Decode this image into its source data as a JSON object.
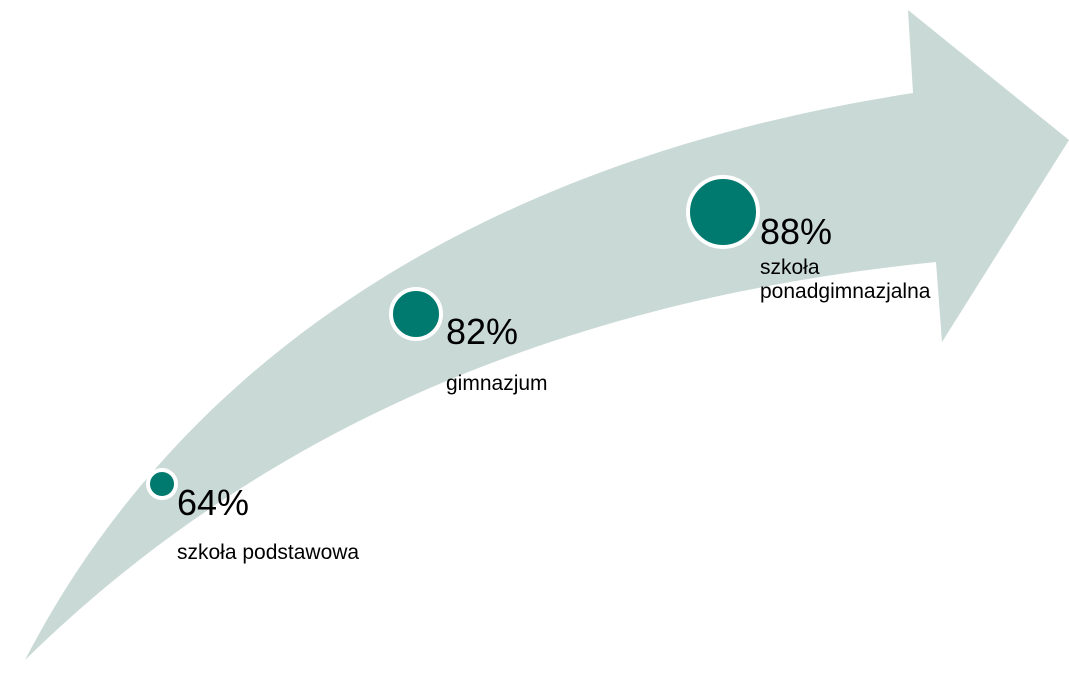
{
  "colors": {
    "arrow": "#C9D9D5",
    "dot": "#007A6E",
    "dot_ring": "#FFFFFF",
    "text": "#000000"
  },
  "milestones": [
    {
      "value": 64,
      "percent_label": "64%",
      "level_label": "szkoła podstawowa"
    },
    {
      "value": 82,
      "percent_label": "82%",
      "level_label": "gimnazjum"
    },
    {
      "value": 88,
      "percent_label": "88%",
      "level_label": "szkoła ponadgimnazjalna"
    }
  ]
}
